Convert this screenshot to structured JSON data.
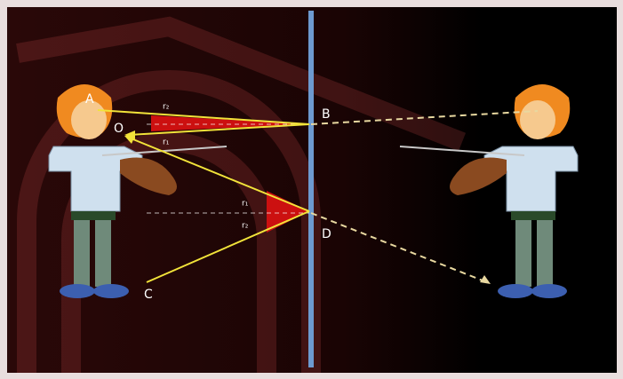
{
  "points": [
    {
      "label": "A"
    },
    {
      "label": "O"
    },
    {
      "label": "B"
    },
    {
      "label": "C"
    },
    {
      "label": "D"
    }
  ],
  "angles": [
    {
      "label": "r₂"
    },
    {
      "label": "r₁"
    },
    {
      "label": "r₁"
    },
    {
      "label": "r₂"
    }
  ]
}
